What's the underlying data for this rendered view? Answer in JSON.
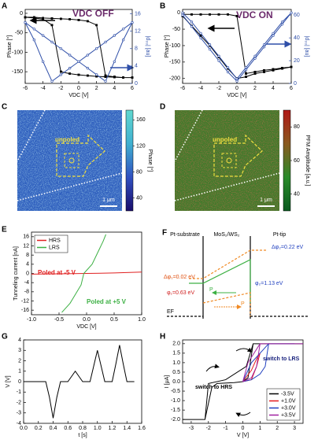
{
  "chart_data": [
    {
      "type": "line",
      "panel": "A",
      "xlabel": "VDC [V]",
      "ylabel": "Phase [°]",
      "y2label": "|d₃₃| [au]",
      "xlim": [
        -6,
        6
      ],
      "xticks": [
        -6,
        -4,
        -2,
        0,
        2,
        4,
        6
      ],
      "ylim": [
        -180,
        10
      ],
      "yticks": [
        0,
        -50,
        -100,
        -150
      ],
      "y2lim": [
        0,
        17
      ],
      "y2ticks": [
        0,
        4,
        8,
        12,
        16
      ],
      "y2color": "#2f4fa8",
      "x": [
        -6,
        -5,
        -4,
        -3,
        -2,
        -1,
        0,
        1,
        2,
        3,
        4,
        5,
        6,
        5,
        4,
        3,
        2,
        1,
        0,
        -1,
        -2,
        -3,
        -4,
        -5,
        -6
      ],
      "series": [
        {
          "color": "#000000",
          "marker": "square",
          "values": [
            -10,
            -10,
            -12,
            -13,
            -14,
            -15,
            -17,
            -20,
            -30,
            -160,
            -163,
            -165,
            -165,
            -165,
            -164,
            -163,
            -162,
            -160,
            -158,
            -155,
            -150,
            -30,
            -15,
            -12,
            -10
          ]
        },
        {
          "color": "#2f4fa8",
          "marker": "circle",
          "axis": "y2",
          "values": [
            14,
            12.5,
            11,
            9.5,
            8,
            6.5,
            5,
            3.5,
            2,
            0.5,
            5,
            10,
            14,
            12.5,
            11,
            9.5,
            8,
            6.5,
            5,
            3.5,
            2,
            0.5,
            5,
            10,
            14
          ]
        }
      ],
      "annotations": [
        {
          "text": "VDC OFF",
          "color": "#6b2a6b"
        }
      ]
    },
    {
      "type": "line",
      "panel": "B",
      "xlabel": "VDC [V]",
      "ylabel": "Phase [°]",
      "y2label": "|d₃₃| [au]",
      "xlim": [
        -6,
        6
      ],
      "xticks": [
        -6,
        -4,
        -2,
        0,
        2,
        4,
        6
      ],
      "ylim": [
        -215,
        10
      ],
      "yticks": [
        0,
        -50,
        -100,
        -150,
        -200
      ],
      "y2lim": [
        0,
        65
      ],
      "y2ticks": [
        0,
        20,
        40,
        60
      ],
      "y2color": "#2f4fa8",
      "x": [
        -6,
        -5,
        -4,
        -3,
        -2,
        -1,
        0,
        1,
        2,
        3,
        4,
        5,
        6,
        5,
        4,
        3,
        2,
        1,
        0,
        -1,
        -2,
        -3,
        -4,
        -5,
        -6
      ],
      "series": [
        {
          "color": "#000000",
          "marker": "square",
          "values": [
            -5,
            -5,
            -5,
            -5,
            -5,
            -5,
            -10,
            -185,
            -180,
            -175,
            -172,
            -168,
            -165,
            -170,
            -175,
            -180,
            -185,
            -195,
            -200,
            -170,
            -135,
            -100,
            -70,
            -40,
            -10
          ]
        },
        {
          "color": "#2f4fa8",
          "marker": "circle",
          "axis": "y2",
          "values": [
            60,
            50,
            40,
            30,
            20,
            10,
            2,
            12,
            22,
            32,
            42,
            52,
            62,
            54,
            44,
            34,
            24,
            14,
            4,
            14,
            24,
            34,
            44,
            54,
            62
          ]
        }
      ],
      "annotations": [
        {
          "text": "VDC ON",
          "color": "#6b2a6b"
        }
      ]
    },
    {
      "type": "map",
      "panel": "C",
      "colorbar_label": "Phase [°]",
      "colorbar_lim": [
        20,
        175
      ],
      "colorbar_ticks": [
        40,
        80,
        120,
        160
      ],
      "colormap": [
        "#1a0d6b",
        "#3050c0",
        "#40b0d0",
        "#60d8d0"
      ],
      "base_color": "#2f5fbe",
      "noise_color": "#7fd0e8",
      "annotations": [
        {
          "text": "unpoled",
          "color": "#f0e040"
        }
      ],
      "scalebar": "1 μm"
    },
    {
      "type": "map",
      "panel": "D",
      "colorbar_label": "PFM Amplitude [a.u.]",
      "colorbar_lim": [
        30,
        90
      ],
      "colorbar_ticks": [
        40,
        60,
        80
      ],
      "colormap": [
        "#0a5a20",
        "#2a8a2a",
        "#8a5a20",
        "#b01818"
      ],
      "base_color": "#3f7a2a",
      "noise_color": "#a03020",
      "annotations": [
        {
          "text": "unpoled",
          "color": "#f0e040"
        }
      ],
      "scalebar": "1 μm"
    },
    {
      "type": "line",
      "panel": "E",
      "xlabel": "VDC [V]",
      "ylabel": "Tunneling current [nA]",
      "xlim": [
        -1,
        1
      ],
      "xticks": [
        {
          "value": -1,
          "label": "-1.0"
        },
        -0.5,
        {
          "value": 0,
          "label": "0.0"
        },
        0.5,
        {
          "value": 1,
          "label": "1.0"
        }
      ],
      "ylim": [
        -18,
        18
      ],
      "yticks": [
        16,
        12,
        8,
        4,
        0,
        -4,
        -8,
        -12,
        -16
      ],
      "legend": "upper left",
      "series": [
        {
          "name": "HRS",
          "color": "#e02020",
          "x": [
            -1,
            -0.5,
            0,
            0.5,
            1
          ],
          "values": [
            -0.3,
            -0.15,
            0,
            0.2,
            0.6
          ]
        },
        {
          "name": "LRS",
          "color": "#3cb043",
          "x": [
            -0.45,
            -0.3,
            -0.2,
            -0.1,
            -0.05,
            0.1,
            0.2,
            0.3,
            0.35
          ],
          "values": [
            -17,
            -13,
            -9,
            -5,
            0,
            4,
            9,
            14,
            17
          ]
        }
      ],
      "annotations": [
        {
          "text": "Poled at -5 V",
          "color": "#e02020"
        },
        {
          "text": "Poled at +5 V",
          "color": "#3cb043"
        }
      ]
    },
    {
      "type": "line",
      "panel": "G",
      "xlabel": "t [s]",
      "ylabel": "V [V]",
      "xlim": [
        0,
        1.6
      ],
      "xticks": [
        {
          "value": 0,
          "label": "0.0"
        },
        0.2,
        0.4,
        0.6,
        0.8,
        {
          "value": 1,
          "label": "1.0"
        },
        1.2,
        1.4,
        1.6
      ],
      "ylim": [
        -4,
        4
      ],
      "yticks": [
        -4,
        -3,
        -2,
        -1,
        0,
        1,
        2,
        3,
        4
      ],
      "series": [
        {
          "color": "#000000",
          "x": [
            0,
            0.3,
            0.35,
            0.4,
            0.45,
            0.5,
            0.6,
            0.65,
            0.7,
            0.75,
            0.8,
            0.9,
            0.95,
            1,
            1.05,
            1.1,
            1.2,
            1.25,
            1.3,
            1.35,
            1.4,
            1.5
          ],
          "values": [
            0,
            0,
            -1.5,
            -3.5,
            -1.5,
            0,
            0,
            0.5,
            1,
            0.5,
            0,
            0,
            1.5,
            3,
            1.5,
            0,
            0,
            1.7,
            3.5,
            1.7,
            0,
            0
          ]
        }
      ]
    },
    {
      "type": "line",
      "panel": "H",
      "xlabel": "V [V]",
      "ylabel": "I [μA]",
      "xlim": [
        -3.5,
        3.5
      ],
      "xticks": [
        -3,
        -2,
        -1,
        0,
        1,
        2,
        3
      ],
      "ylim": [
        -2.2,
        2.2
      ],
      "yticks": [
        {
          "value": -2,
          "label": "-2.0"
        },
        -1.5,
        {
          "value": -1,
          "label": "-1.0"
        },
        -0.5,
        {
          "value": 0,
          "label": "0.0"
        },
        0.5,
        {
          "value": 1,
          "label": "1.0"
        },
        1.5,
        {
          "value": 2,
          "label": "2.0"
        }
      ],
      "legend": "lower right",
      "series": [
        {
          "name": "-3.5V",
          "color": "#000000",
          "x": [
            -3.5,
            -2.2,
            -1.8,
            -1.5,
            -0.5,
            0,
            0.3,
            0.6,
            3.5,
            0.6,
            0.2,
            -1,
            -2,
            -2.2,
            -3.5
          ],
          "values": [
            -2,
            -2,
            -0.3,
            -0.1,
            -0.05,
            0,
            0.2,
            2,
            2,
            2,
            0.8,
            0.1,
            -0.1,
            -2,
            -2
          ]
        },
        {
          "name": "+1.0V",
          "color": "#e41a1c",
          "x": [
            0,
            0.5,
            0.8,
            1,
            0.8,
            0.5,
            0
          ],
          "values": [
            0,
            0.1,
            0.8,
            1.5,
            1.2,
            0.6,
            0
          ]
        },
        {
          "name": "+3.0V",
          "color": "#1f3fbf",
          "x": [
            0,
            0.5,
            1,
            1.3,
            1.5,
            3,
            1.5,
            0.5,
            0
          ],
          "values": [
            0,
            0.1,
            0.4,
            0.8,
            2,
            2,
            2,
            1,
            0
          ]
        },
        {
          "name": "+3.5V",
          "color": "#a020a0",
          "x": [
            0,
            0.5,
            0.8,
            1,
            3.5,
            1,
            0.3,
            0
          ],
          "values": [
            0,
            0.2,
            0.8,
            2,
            2,
            2,
            1,
            0
          ]
        }
      ],
      "annotations": [
        {
          "text": "switch to LRS",
          "color": "#1a237e"
        },
        {
          "text": "switch to HRS",
          "color": "#000000"
        }
      ]
    }
  ],
  "band_diagram": {
    "panel": "F",
    "left": "Pt-substrate",
    "middle": "MoS₂/WS₂",
    "right": "Pt-tip",
    "dphi1": "Δφ₁=0.02 eV",
    "phi1": "φ₁=0.63 eV",
    "dphi2": "Δφ₂=0.22 eV",
    "phi2": "φ₂=1.13 eV",
    "ef": "EF",
    "p_green": "P",
    "p_orange": "P"
  }
}
